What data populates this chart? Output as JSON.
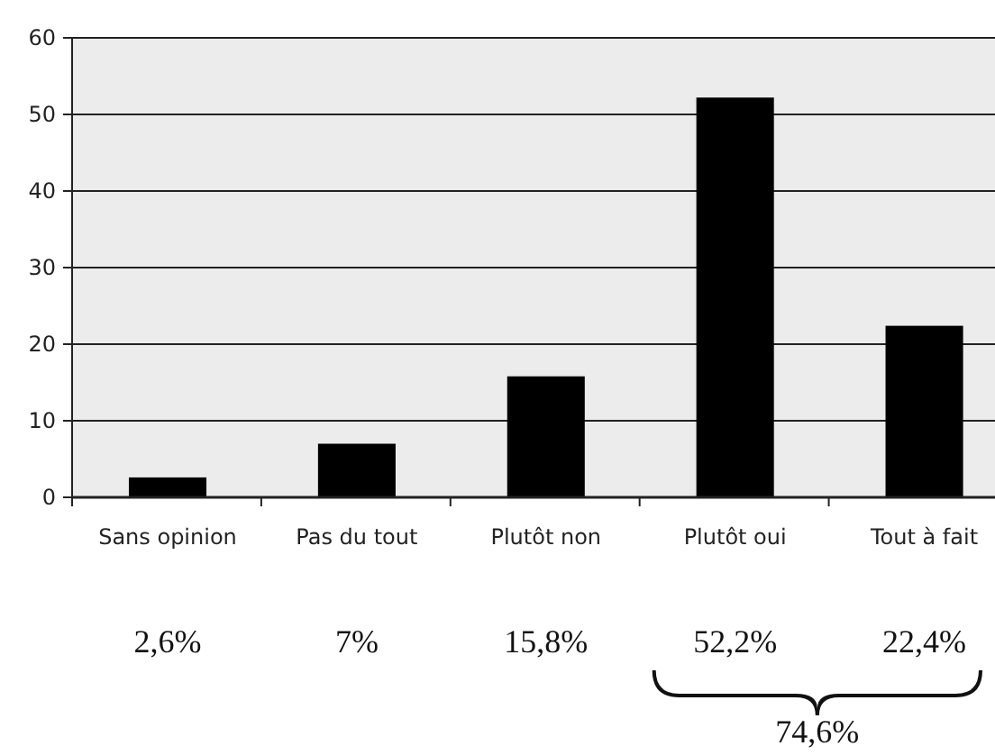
{
  "chart_data": {
    "type": "bar",
    "categories": [
      "Sans opinion",
      "Pas du tout",
      "Plutôt non",
      "Plutôt oui",
      "Tout à fait"
    ],
    "values": [
      2.6,
      7,
      15.8,
      52.2,
      22.4
    ],
    "value_labels": [
      "2,6%",
      "7%",
      "15,8%",
      "52,2%",
      "22,4%"
    ],
    "color": "#000000",
    "ylim": [
      0,
      60
    ],
    "yticks": [
      0,
      10,
      20,
      30,
      40,
      50,
      60
    ],
    "grid": "y",
    "annotations": [
      "74,6%"
    ]
  }
}
